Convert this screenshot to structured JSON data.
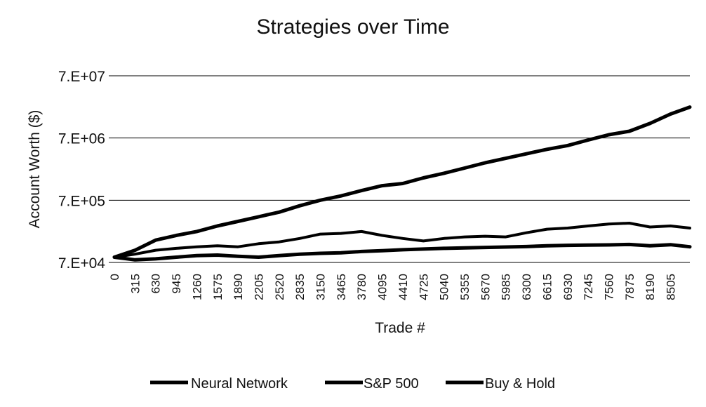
{
  "chart_data": {
    "type": "line",
    "title": "Strategies over Time",
    "xlabel": "Trade #",
    "ylabel": "Account Worth ($)",
    "y_scale": "log",
    "ylim": [
      70000,
      70000000
    ],
    "xlim": [
      0,
      8800
    ],
    "y_ticks": [
      "7.E+04",
      "7.E+05",
      "7.E+06",
      "7.E+07"
    ],
    "y_tick_values": [
      70000,
      700000,
      7000000,
      70000000
    ],
    "x_tick_labels": [
      "0",
      "315",
      "630",
      "945",
      "1260",
      "1575",
      "1890",
      "2205",
      "2520",
      "2835",
      "3150",
      "3465",
      "3780",
      "4095",
      "4410",
      "4725",
      "5040",
      "5355",
      "5670",
      "5985",
      "6300",
      "6615",
      "6930",
      "7245",
      "7560",
      "7875",
      "8190",
      "8505"
    ],
    "grid": "horizontal",
    "legend_position": "bottom",
    "line_color": "#000000",
    "series": [
      {
        "name": "Neural Network",
        "x": [
          0,
          315,
          630,
          945,
          1260,
          1575,
          1890,
          2205,
          2520,
          2835,
          3150,
          3465,
          3780,
          4095,
          4410,
          4725,
          5040,
          5355,
          5670,
          5985,
          6300,
          6615,
          6930,
          7245,
          7560,
          7875,
          8190,
          8505,
          8800
        ],
        "values": [
          85000,
          110000,
          160000,
          190000,
          220000,
          270000,
          320000,
          380000,
          450000,
          570000,
          700000,
          820000,
          1000000,
          1200000,
          1300000,
          1600000,
          1900000,
          2300000,
          2800000,
          3300000,
          3900000,
          4600000,
          5300000,
          6500000,
          7900000,
          9000000,
          12000000,
          17000000,
          22000000
        ]
      },
      {
        "name": "S&P 500",
        "x": [
          0,
          315,
          630,
          945,
          1260,
          1575,
          1890,
          2205,
          2520,
          2835,
          3150,
          3465,
          3780,
          4095,
          4410,
          4725,
          5040,
          5355,
          5670,
          5985,
          6300,
          6615,
          6930,
          7245,
          7560,
          7875,
          8190,
          8505,
          8800
        ],
        "values": [
          85000,
          95000,
          110000,
          118000,
          125000,
          130000,
          125000,
          140000,
          150000,
          170000,
          200000,
          205000,
          220000,
          190000,
          170000,
          155000,
          170000,
          180000,
          185000,
          180000,
          210000,
          240000,
          250000,
          270000,
          290000,
          300000,
          260000,
          270000,
          250000
        ]
      },
      {
        "name": "Buy & Hold",
        "x": [
          0,
          315,
          630,
          945,
          1260,
          1575,
          1890,
          2205,
          2520,
          2835,
          3150,
          3465,
          3780,
          4095,
          4410,
          4725,
          5040,
          5355,
          5670,
          5985,
          6300,
          6615,
          6930,
          7245,
          7560,
          7875,
          8190,
          8505,
          8800
        ],
        "values": [
          85000,
          77000,
          80000,
          85000,
          90000,
          92000,
          88000,
          85000,
          90000,
          95000,
          98000,
          100000,
          105000,
          108000,
          112000,
          115000,
          118000,
          120000,
          122000,
          124000,
          126000,
          130000,
          132000,
          133000,
          134000,
          136000,
          130000,
          135000,
          125000
        ]
      }
    ]
  }
}
